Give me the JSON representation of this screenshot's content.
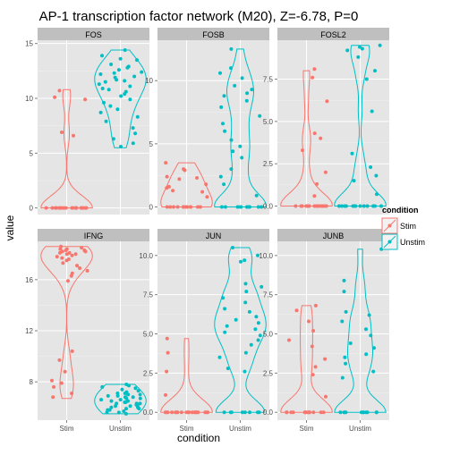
{
  "chart_data": {
    "type": "violin",
    "title": "AP-1 transcription factor network (M20), Z=-6.78, P=0",
    "xlabel": "condition",
    "ylabel": "value",
    "categories": [
      "Stim",
      "Unstim"
    ],
    "legend": {
      "title": "condition",
      "position": "right",
      "items": [
        {
          "label": "Stim",
          "color": "#F8766D"
        },
        {
          "label": "Unstim",
          "color": "#00BFC4"
        }
      ]
    },
    "grid": true,
    "facets": [
      {
        "name": "FOS",
        "ylim": [
          -0.6,
          15.3
        ],
        "yticks": [
          0,
          5,
          10,
          15
        ],
        "series": [
          {
            "condition": "Stim",
            "violin_range": [
              0,
              10.8
            ],
            "points": [
              10.7,
              10.1,
              9.9,
              6.9,
              6.6,
              0,
              0,
              0,
              0,
              0,
              0,
              0,
              0,
              0,
              0,
              0,
              0,
              0,
              0,
              0,
              0,
              0,
              0,
              0
            ]
          },
          {
            "condition": "Unstim",
            "violin_range": [
              5.5,
              14.4
            ],
            "points": [
              14.4,
              13.9,
              13.6,
              13.5,
              13.1,
              12.9,
              12.8,
              12.6,
              12.4,
              12.3,
              12.2,
              12.0,
              11.9,
              11.7,
              11.6,
              11.5,
              11.3,
              11.1,
              10.9,
              10.8,
              10.6,
              10.4,
              10.2,
              9.9,
              9.6,
              9.3,
              9.0,
              8.7,
              8.3,
              7.9,
              7.3,
              6.8,
              6.3,
              5.9,
              5.6
            ]
          }
        ]
      },
      {
        "name": "FOSB",
        "ylim": [
          -0.6,
          13.2
        ],
        "yticks": [
          0,
          5,
          10
        ],
        "series": [
          {
            "condition": "Stim",
            "violin_range": [
              0,
              3.5
            ],
            "points": [
              3.5,
              3.0,
              2.9,
              2.4,
              2.3,
              2.2,
              1.8,
              1.6,
              1.5,
              1.3,
              1.2,
              0.8,
              0,
              0,
              0,
              0,
              0,
              0,
              0,
              0,
              0,
              0,
              0,
              0
            ]
          },
          {
            "condition": "Unstim",
            "violin_range": [
              0,
              12.5
            ],
            "points": [
              12.5,
              11.0,
              10.6,
              10.2,
              9.6,
              9.3,
              9.0,
              8.8,
              8.4,
              7.9,
              7.2,
              6.6,
              6.0,
              5.3,
              4.8,
              4.4,
              3.9,
              3.0,
              2.4,
              1.8,
              0.9,
              0,
              0,
              0,
              0,
              0,
              0,
              0,
              0,
              0,
              0,
              0
            ]
          }
        ]
      },
      {
        "name": "FOSL2",
        "ylim": [
          -0.5,
          9.8
        ],
        "yticks": [
          0,
          2.5,
          5.0,
          7.5
        ],
        "series": [
          {
            "condition": "Stim",
            "violin_range": [
              0,
              8.0
            ],
            "points": [
              8.1,
              7.6,
              6.2,
              4.3,
              4.0,
              3.3,
              2.0,
              1.3,
              0.6,
              0,
              0,
              0,
              0,
              0,
              0,
              0,
              0,
              0,
              0,
              0,
              0,
              0,
              0,
              0
            ]
          },
          {
            "condition": "Unstim",
            "violin_range": [
              0,
              9.5
            ],
            "points": [
              9.5,
              9.4,
              9.3,
              9.2,
              8.8,
              8.0,
              7.5,
              5.6,
              3.1,
              2.3,
              1.8,
              1.5,
              0.7,
              0,
              0,
              0,
              0,
              0,
              0,
              0,
              0,
              0,
              0,
              0,
              0,
              0
            ]
          }
        ]
      },
      {
        "name": "IFNG",
        "ylim": [
          5.0,
          19.0
        ],
        "yticks": [
          8,
          12,
          16
        ],
        "series": [
          {
            "condition": "Stim",
            "violin_range": [
              6.7,
              18.6
            ],
            "points": [
              18.6,
              18.5,
              18.4,
              18.4,
              18.3,
              18.3,
              18.2,
              18.2,
              18.1,
              18.1,
              18.0,
              18.0,
              17.9,
              17.8,
              17.7,
              17.6,
              17.5,
              17.3,
              17.1,
              16.9,
              16.7,
              16.5,
              16.3,
              15.9,
              10.4,
              9.7,
              8.8,
              8.1,
              7.9,
              7.6,
              7.1,
              6.8
            ]
          },
          {
            "condition": "Unstim",
            "violin_range": [
              5.5,
              7.8
            ],
            "points": [
              7.8,
              7.7,
              7.6,
              7.5,
              7.4,
              7.3,
              7.2,
              7.1,
              7.0,
              6.9,
              6.8,
              6.8,
              6.7,
              6.6,
              6.5,
              6.5,
              6.4,
              6.3,
              6.3,
              6.2,
              6.1,
              6.0,
              6.0,
              5.9,
              5.9,
              5.8,
              5.7,
              5.6,
              5.6,
              5.5,
              6.2,
              6.6,
              6.9,
              7.0,
              6.4,
              6.1,
              5.8,
              6.7,
              7.1,
              6.3
            ]
          }
        ]
      },
      {
        "name": "JUN",
        "ylim": [
          -0.5,
          10.9
        ],
        "yticks": [
          0,
          2.5,
          5.0,
          7.5,
          10.0
        ],
        "series": [
          {
            "condition": "Stim",
            "violin_range": [
              0,
              4.7
            ],
            "points": [
              4.7,
              3.8,
              2.6,
              1.1,
              0,
              0,
              0,
              0,
              0,
              0,
              0,
              0,
              0,
              0,
              0,
              0,
              0,
              0,
              0,
              0,
              0,
              0,
              0,
              0
            ]
          },
          {
            "condition": "Unstim",
            "violin_range": [
              0,
              10.5
            ],
            "points": [
              10.5,
              10.0,
              9.7,
              9.6,
              8.2,
              8.0,
              7.7,
              7.3,
              7.0,
              6.6,
              6.4,
              6.1,
              5.9,
              5.7,
              5.5,
              5.3,
              5.1,
              4.9,
              4.6,
              4.3,
              3.8,
              3.5,
              2.8,
              2.6,
              0,
              0,
              0,
              0,
              0,
              0,
              0,
              0
            ]
          }
        ]
      },
      {
        "name": "JUNB",
        "ylim": [
          -0.5,
          10.9
        ],
        "yticks": [
          0,
          2.5,
          5.0,
          7.5,
          10.0
        ],
        "series": [
          {
            "condition": "Stim",
            "violin_range": [
              0,
              6.8
            ],
            "points": [
              6.8,
              6.5,
              5.8,
              5.2,
              4.6,
              4.2,
              3.4,
              2.9,
              2.4,
              1.0,
              0,
              0,
              0,
              0,
              0,
              0,
              0,
              0,
              0,
              0,
              0,
              0,
              0,
              0
            ]
          },
          {
            "condition": "Unstim",
            "violin_range": [
              0,
              10.4
            ],
            "points": [
              10.4,
              8.4,
              7.7,
              6.4,
              6.2,
              5.8,
              5.3,
              4.9,
              4.4,
              4.1,
              3.7,
              3.5,
              3.1,
              2.6,
              2.2,
              0,
              0,
              0,
              0,
              0,
              0,
              0,
              0,
              0,
              0,
              0
            ]
          }
        ]
      }
    ]
  }
}
